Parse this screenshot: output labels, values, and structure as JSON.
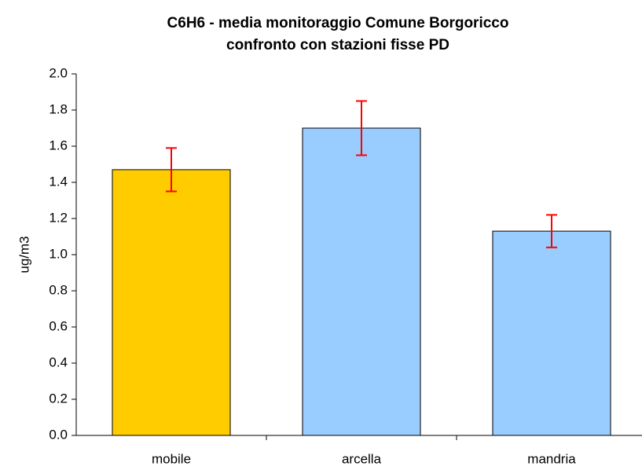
{
  "chart_data": {
    "type": "bar",
    "title": "C6H6 - media monitoraggio Comune Borgoricco",
    "subtitle": "confronto con stazioni fisse PD",
    "y_label": "ug/m3",
    "categories": [
      "mobile",
      "arcella",
      "mandria"
    ],
    "values": [
      1.47,
      1.7,
      1.13
    ],
    "errors": [
      0.12,
      0.15,
      0.09
    ],
    "colors": [
      "#ffcc00",
      "#99ccff",
      "#99ccff"
    ],
    "error_color": "#ff0000",
    "ylim": [
      0,
      2
    ],
    "yticks": [
      {
        "value": 0,
        "label": "0.0"
      },
      0.2,
      0.4,
      0.6,
      0.8,
      {
        "value": 1,
        "label": "1.0"
      },
      1.2,
      1.4,
      1.6,
      1.8,
      {
        "value": 2,
        "label": "2.0"
      }
    ],
    "grid": false
  }
}
